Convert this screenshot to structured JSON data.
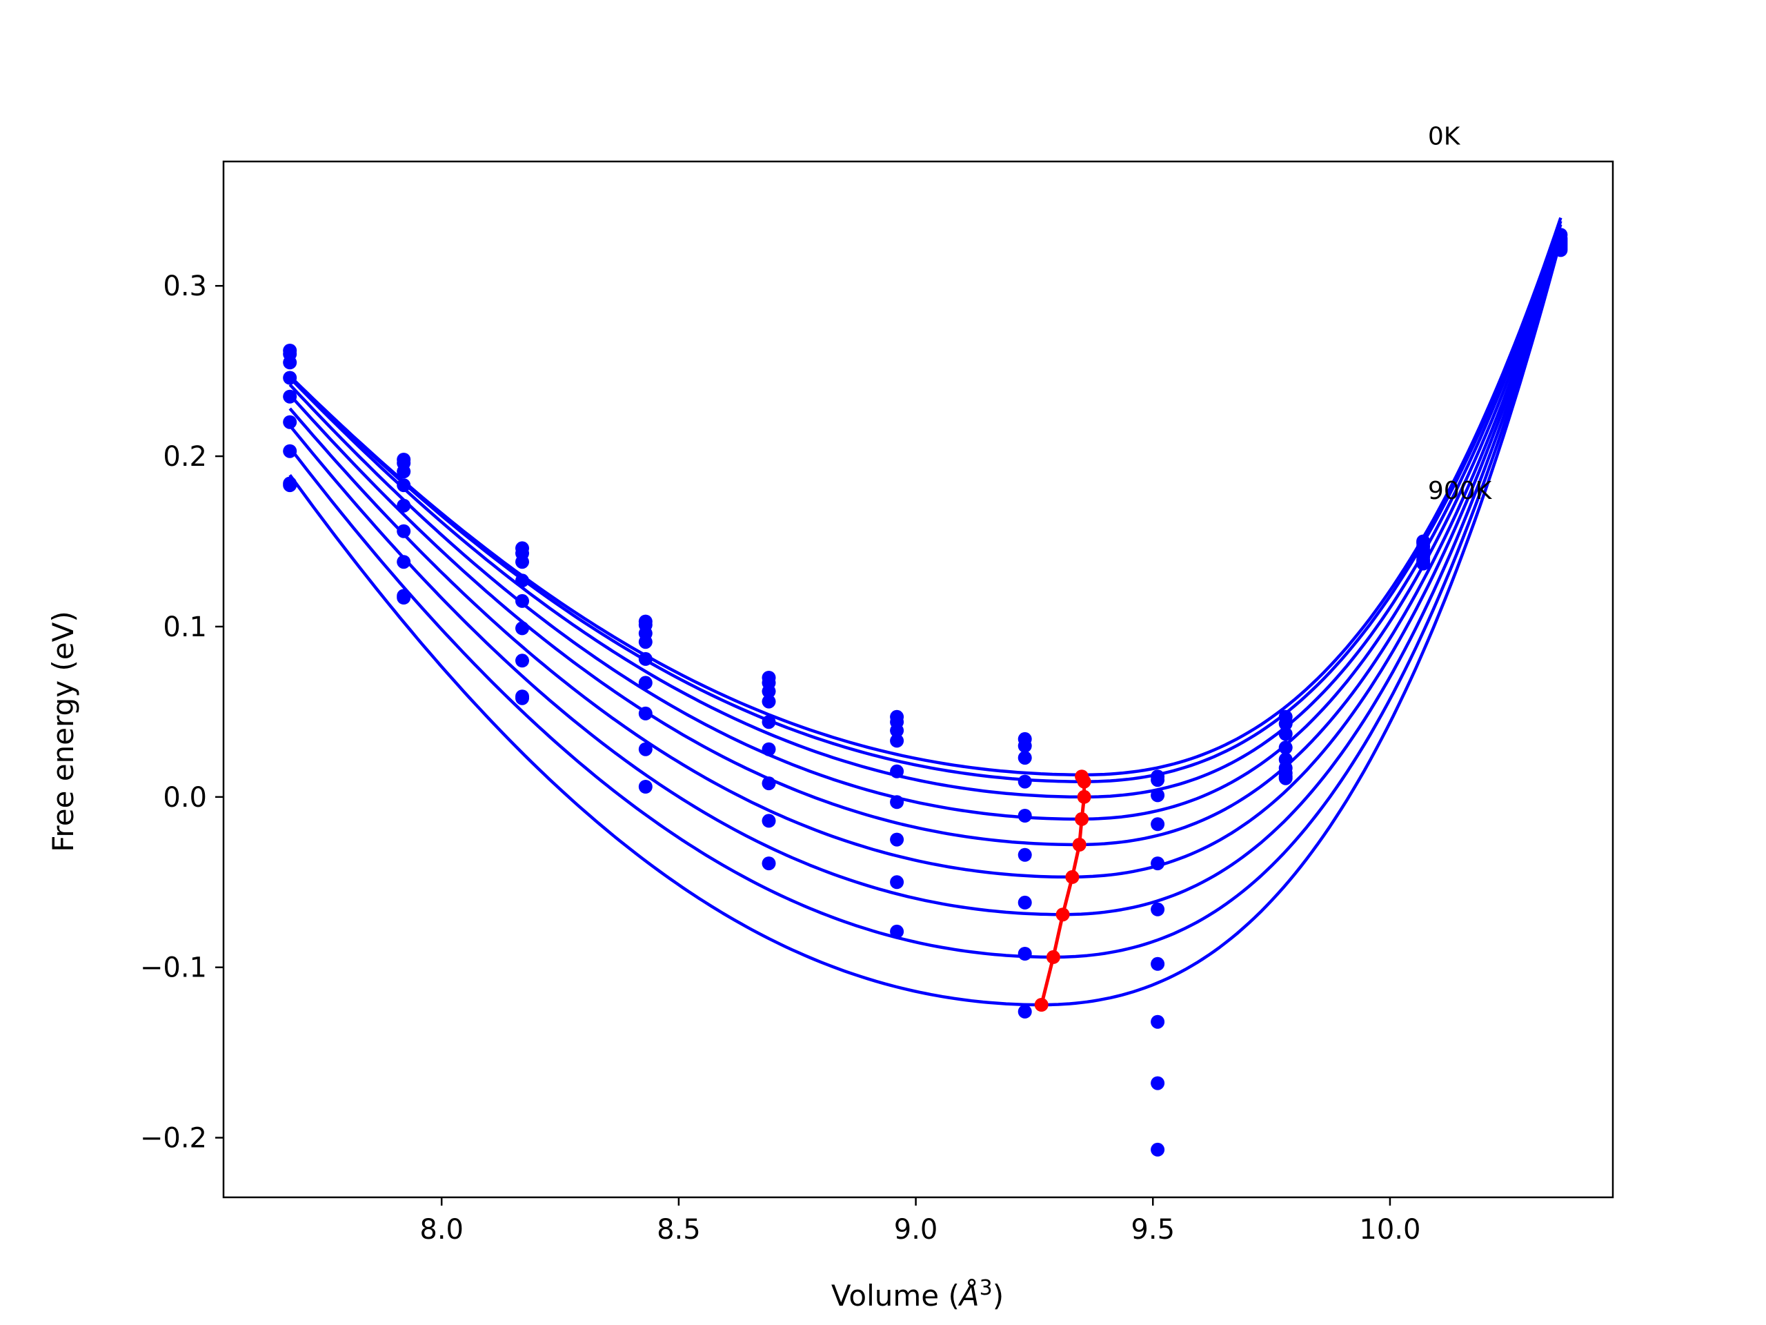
{
  "chart_data": {
    "type": "line",
    "title": "",
    "xlabel": "Volume (",
    "xlabel_symbol": "Å",
    "xlabel_exponent": "3",
    "xlabel_close": ")",
    "ylabel": "Free energy (eV)",
    "xlim": [
      7.54,
      10.47
    ],
    "ylim": [
      -0.235,
      0.373
    ],
    "xticks": [
      8.0,
      8.5,
      9.0,
      9.5,
      10.0
    ],
    "xtick_labels": [
      "8.0",
      "8.5",
      "9.0",
      "9.5",
      "10.0"
    ],
    "yticks": [
      -0.2,
      -0.1,
      0.0,
      0.1,
      0.2,
      0.3
    ],
    "ytick_labels": [
      "−0.2",
      "−0.1",
      "0.0",
      "0.1",
      "0.2",
      "0.3"
    ],
    "grid": false,
    "annotations": [
      {
        "text": "0K",
        "x": 10.08,
        "y": 0.383
      },
      {
        "text": "900K",
        "x": 10.08,
        "y": 0.175
      }
    ],
    "fit_color": "#0000ff",
    "point_color": "#0000ff",
    "min_color": "#ff0000",
    "volumes": [
      7.68,
      7.92,
      8.17,
      8.43,
      8.69,
      8.96,
      9.23,
      9.51,
      9.78,
      10.07,
      10.36
    ],
    "fit_series": [
      {
        "V0": 9.355,
        "E0": 0.013,
        "left": 0.247,
        "right": 0.34,
        "points": [
          0.262,
          0.198,
          0.146,
          0.103,
          0.07,
          0.047,
          0.034,
          0.012,
          0.047,
          0.15,
          0.33
        ]
      },
      {
        "V0": 9.355,
        "E0": 0.009,
        "left": 0.247,
        "right": 0.338,
        "points": [
          0.26,
          0.196,
          0.143,
          0.101,
          0.067,
          0.044,
          0.03,
          0.01,
          0.043,
          0.149,
          0.328
        ]
      },
      {
        "V0": 9.355,
        "E0": 0.0,
        "left": 0.246,
        "right": 0.336,
        "points": [
          0.255,
          0.191,
          0.138,
          0.096,
          0.062,
          0.039,
          0.023,
          0.001,
          0.037,
          0.147,
          0.327
        ]
      },
      {
        "V0": 9.345,
        "E0": -0.013,
        "left": 0.242,
        "right": 0.333,
        "points": [
          0.246,
          0.183,
          0.127,
          0.091,
          0.056,
          0.033,
          0.009,
          -0.016,
          0.029,
          0.145,
          0.326
        ]
      },
      {
        "V0": 9.34,
        "E0": -0.028,
        "left": 0.236,
        "right": 0.331,
        "points": [
          0.235,
          0.171,
          0.115,
          0.081,
          0.044,
          0.015,
          -0.011,
          -0.039,
          0.022,
          0.143,
          0.325
        ]
      },
      {
        "V0": 9.325,
        "E0": -0.047,
        "left": 0.228,
        "right": 0.33,
        "points": [
          0.22,
          0.156,
          0.099,
          0.067,
          0.028,
          -0.003,
          -0.034,
          -0.066,
          0.017,
          0.141,
          0.324
        ]
      },
      {
        "V0": 9.31,
        "E0": -0.069,
        "left": 0.218,
        "right": 0.329,
        "points": [
          0.203,
          0.138,
          0.08,
          0.049,
          0.008,
          -0.025,
          -0.062,
          -0.098,
          0.014,
          0.139,
          0.323
        ]
      },
      {
        "V0": 9.29,
        "E0": -0.094,
        "left": 0.205,
        "right": 0.328,
        "points": [
          0.183,
          0.118,
          0.058,
          0.028,
          -0.014,
          -0.05,
          -0.092,
          -0.132,
          0.012,
          0.138,
          0.322
        ]
      },
      {
        "V0": 9.265,
        "E0": -0.122,
        "left": 0.189,
        "right": 0.327,
        "points": [
          0.184,
          0.117,
          0.059,
          0.006,
          -0.039,
          -0.079,
          -0.126,
          -0.168,
          0.011,
          0.137,
          0.321
        ]
      }
    ],
    "extra_points": [
      {
        "x": 9.51,
        "y": -0.207
      }
    ],
    "min_line": [
      {
        "x": 9.35,
        "y": 0.012
      },
      {
        "x": 9.355,
        "y": 0.009
      },
      {
        "x": 9.355,
        "y": 0.0
      },
      {
        "x": 9.35,
        "y": -0.013
      },
      {
        "x": 9.345,
        "y": -0.028
      },
      {
        "x": 9.33,
        "y": -0.047
      },
      {
        "x": 9.31,
        "y": -0.069
      },
      {
        "x": 9.29,
        "y": -0.094
      },
      {
        "x": 9.265,
        "y": -0.122
      }
    ]
  }
}
